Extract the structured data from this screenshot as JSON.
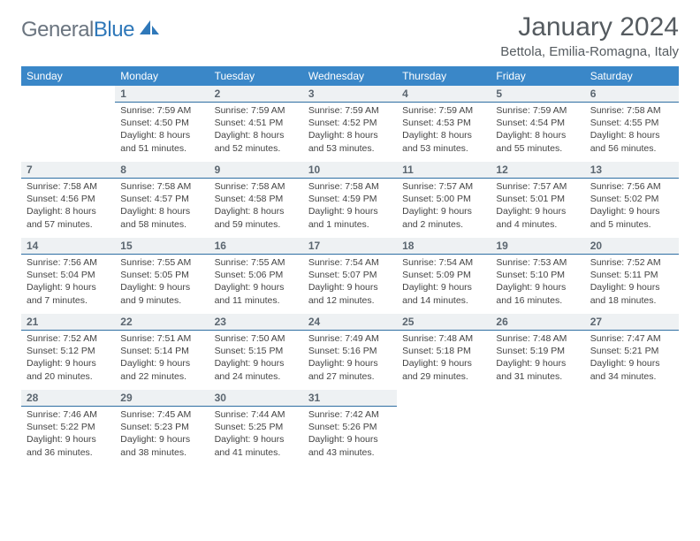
{
  "logo": {
    "text1": "General",
    "text2": "Blue"
  },
  "title": "January 2024",
  "location": "Bettola, Emilia-Romagna, Italy",
  "colors": {
    "header_bg": "#3a87c8",
    "header_text": "#ffffff",
    "daynum_bg": "#eef1f3",
    "daynum_border": "#2f6fa3",
    "logo_gray": "#6b7580",
    "logo_blue": "#2f78b9",
    "body_text": "#444444"
  },
  "weekdays": [
    "Sunday",
    "Monday",
    "Tuesday",
    "Wednesday",
    "Thursday",
    "Friday",
    "Saturday"
  ],
  "weeks": [
    [
      null,
      {
        "n": "1",
        "sr": "7:59 AM",
        "ss": "4:50 PM",
        "dh": "8",
        "dm": "51"
      },
      {
        "n": "2",
        "sr": "7:59 AM",
        "ss": "4:51 PM",
        "dh": "8",
        "dm": "52"
      },
      {
        "n": "3",
        "sr": "7:59 AM",
        "ss": "4:52 PM",
        "dh": "8",
        "dm": "53"
      },
      {
        "n": "4",
        "sr": "7:59 AM",
        "ss": "4:53 PM",
        "dh": "8",
        "dm": "53"
      },
      {
        "n": "5",
        "sr": "7:59 AM",
        "ss": "4:54 PM",
        "dh": "8",
        "dm": "55"
      },
      {
        "n": "6",
        "sr": "7:58 AM",
        "ss": "4:55 PM",
        "dh": "8",
        "dm": "56"
      }
    ],
    [
      {
        "n": "7",
        "sr": "7:58 AM",
        "ss": "4:56 PM",
        "dh": "8",
        "dm": "57"
      },
      {
        "n": "8",
        "sr": "7:58 AM",
        "ss": "4:57 PM",
        "dh": "8",
        "dm": "58"
      },
      {
        "n": "9",
        "sr": "7:58 AM",
        "ss": "4:58 PM",
        "dh": "8",
        "dm": "59"
      },
      {
        "n": "10",
        "sr": "7:58 AM",
        "ss": "4:59 PM",
        "dh": "9",
        "dm": "1"
      },
      {
        "n": "11",
        "sr": "7:57 AM",
        "ss": "5:00 PM",
        "dh": "9",
        "dm": "2"
      },
      {
        "n": "12",
        "sr": "7:57 AM",
        "ss": "5:01 PM",
        "dh": "9",
        "dm": "4"
      },
      {
        "n": "13",
        "sr": "7:56 AM",
        "ss": "5:02 PM",
        "dh": "9",
        "dm": "5"
      }
    ],
    [
      {
        "n": "14",
        "sr": "7:56 AM",
        "ss": "5:04 PM",
        "dh": "9",
        "dm": "7"
      },
      {
        "n": "15",
        "sr": "7:55 AM",
        "ss": "5:05 PM",
        "dh": "9",
        "dm": "9"
      },
      {
        "n": "16",
        "sr": "7:55 AM",
        "ss": "5:06 PM",
        "dh": "9",
        "dm": "11"
      },
      {
        "n": "17",
        "sr": "7:54 AM",
        "ss": "5:07 PM",
        "dh": "9",
        "dm": "12"
      },
      {
        "n": "18",
        "sr": "7:54 AM",
        "ss": "5:09 PM",
        "dh": "9",
        "dm": "14"
      },
      {
        "n": "19",
        "sr": "7:53 AM",
        "ss": "5:10 PM",
        "dh": "9",
        "dm": "16"
      },
      {
        "n": "20",
        "sr": "7:52 AM",
        "ss": "5:11 PM",
        "dh": "9",
        "dm": "18"
      }
    ],
    [
      {
        "n": "21",
        "sr": "7:52 AM",
        "ss": "5:12 PM",
        "dh": "9",
        "dm": "20"
      },
      {
        "n": "22",
        "sr": "7:51 AM",
        "ss": "5:14 PM",
        "dh": "9",
        "dm": "22"
      },
      {
        "n": "23",
        "sr": "7:50 AM",
        "ss": "5:15 PM",
        "dh": "9",
        "dm": "24"
      },
      {
        "n": "24",
        "sr": "7:49 AM",
        "ss": "5:16 PM",
        "dh": "9",
        "dm": "27"
      },
      {
        "n": "25",
        "sr": "7:48 AM",
        "ss": "5:18 PM",
        "dh": "9",
        "dm": "29"
      },
      {
        "n": "26",
        "sr": "7:48 AM",
        "ss": "5:19 PM",
        "dh": "9",
        "dm": "31"
      },
      {
        "n": "27",
        "sr": "7:47 AM",
        "ss": "5:21 PM",
        "dh": "9",
        "dm": "34"
      }
    ],
    [
      {
        "n": "28",
        "sr": "7:46 AM",
        "ss": "5:22 PM",
        "dh": "9",
        "dm": "36"
      },
      {
        "n": "29",
        "sr": "7:45 AM",
        "ss": "5:23 PM",
        "dh": "9",
        "dm": "38"
      },
      {
        "n": "30",
        "sr": "7:44 AM",
        "ss": "5:25 PM",
        "dh": "9",
        "dm": "41"
      },
      {
        "n": "31",
        "sr": "7:42 AM",
        "ss": "5:26 PM",
        "dh": "9",
        "dm": "43"
      },
      null,
      null,
      null
    ]
  ],
  "labels": {
    "sunrise": "Sunrise:",
    "sunset": "Sunset:",
    "daylight": "Daylight:",
    "hours": "hours",
    "and": "and",
    "minutes": "minutes."
  }
}
